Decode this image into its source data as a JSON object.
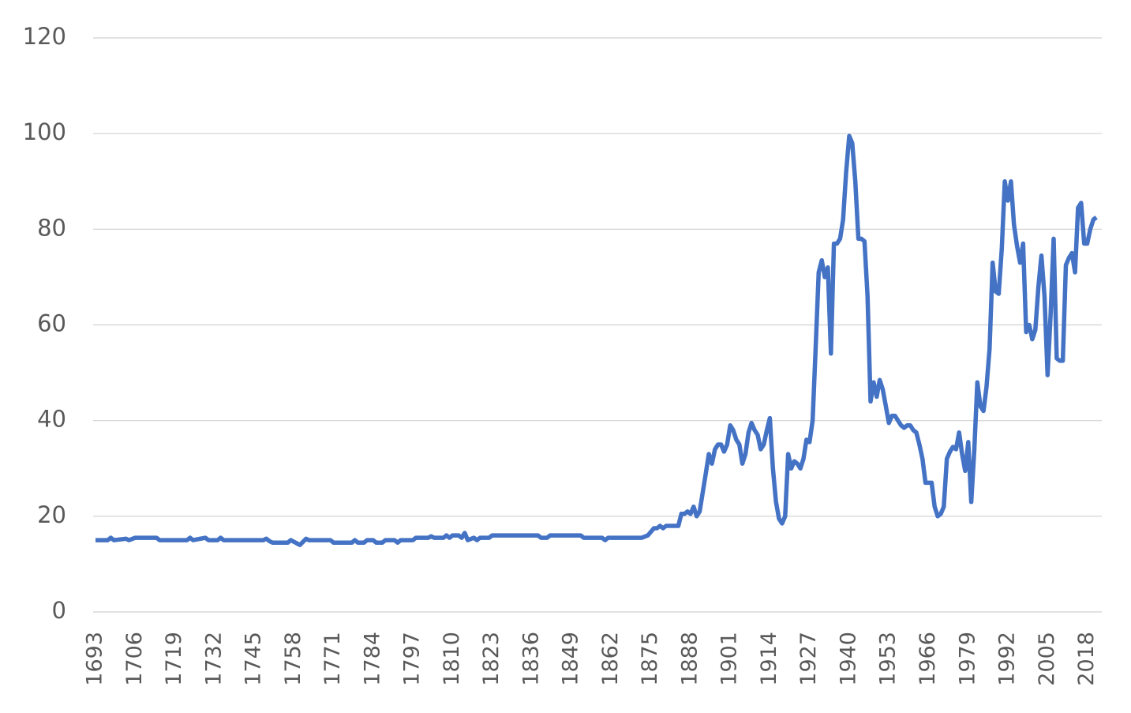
{
  "chart_data": {
    "type": "line",
    "x": [
      1693,
      1697,
      1698,
      1699,
      1703,
      1704,
      1706,
      1713,
      1714,
      1723,
      1724,
      1725,
      1729,
      1730,
      1733,
      1734,
      1735,
      1748,
      1749,
      1750,
      1751,
      1756,
      1757,
      1760,
      1762,
      1763,
      1770,
      1771,
      1777,
      1778,
      1779,
      1781,
      1782,
      1784,
      1785,
      1787,
      1788,
      1791,
      1792,
      1793,
      1797,
      1798,
      1802,
      1803,
      1804,
      1807,
      1808,
      1809,
      1810,
      1812,
      1813,
      1814,
      1815,
      1817,
      1818,
      1819,
      1822,
      1823,
      1838,
      1839,
      1841,
      1842,
      1852,
      1853,
      1859,
      1860,
      1861,
      1872,
      1874,
      1876,
      1877,
      1878,
      1879,
      1880,
      1884,
      1885,
      1886,
      1887,
      1888,
      1889,
      1890,
      1891,
      1892,
      1893,
      1894,
      1895,
      1896,
      1897,
      1898,
      1899,
      1900,
      1901,
      1902,
      1903,
      1904,
      1905,
      1906,
      1907,
      1908,
      1909,
      1910,
      1911,
      1912,
      1913,
      1914,
      1915,
      1916,
      1917,
      1918,
      1919,
      1920,
      1921,
      1922,
      1923,
      1924,
      1925,
      1926,
      1927,
      1928,
      1929,
      1930,
      1931,
      1932,
      1933,
      1934,
      1935,
      1936,
      1937,
      1938,
      1939,
      1940,
      1941,
      1942,
      1943,
      1944,
      1945,
      1946,
      1947,
      1948,
      1949,
      1950,
      1951,
      1952,
      1953,
      1954,
      1955,
      1956,
      1957,
      1958,
      1959,
      1960,
      1961,
      1962,
      1963,
      1964,
      1965,
      1966,
      1967,
      1968,
      1969,
      1970,
      1971,
      1972,
      1973,
      1974,
      1975,
      1976,
      1977,
      1978,
      1979,
      1980,
      1981,
      1982,
      1983,
      1984,
      1985,
      1986,
      1987,
      1988,
      1989,
      1990,
      1991,
      1992,
      1993,
      1994,
      1995,
      1996,
      1997,
      1998,
      1999,
      2000,
      2001,
      2002,
      2003,
      2004,
      2005,
      2006,
      2007,
      2008,
      2009,
      2010,
      2011,
      2012,
      2013,
      2014,
      2015,
      2016,
      2017,
      2018,
      2019,
      2020,
      2021
    ],
    "series": [
      {
        "color": "#4472c4",
        "values": [
          15,
          15,
          15.5,
          15,
          15.3,
          15,
          15.5,
          15.5,
          15,
          15,
          15.5,
          15,
          15.5,
          15,
          15,
          15.5,
          15,
          15,
          15.3,
          14.8,
          14.5,
          14.5,
          15,
          14,
          15.3,
          15,
          15,
          14.5,
          14.5,
          15,
          14.5,
          14.5,
          15,
          15,
          14.5,
          14.5,
          15,
          15,
          14.5,
          15,
          15,
          15.5,
          15.5,
          15.8,
          15.5,
          15.5,
          16,
          15.5,
          16,
          16,
          15.5,
          16.5,
          15,
          15.5,
          15,
          15.5,
          15.5,
          16,
          16,
          15.5,
          15.5,
          16,
          16,
          15.5,
          15.5,
          15,
          15.5,
          15.5,
          16,
          17.5,
          17.5,
          18,
          17.5,
          18,
          18,
          20.5,
          20.5,
          21,
          20.5,
          22,
          20,
          21,
          25,
          29,
          33,
          31,
          34,
          35,
          35,
          33.5,
          35,
          39,
          38,
          36,
          35,
          31,
          33,
          37.5,
          39.5,
          38,
          37,
          34,
          35,
          38,
          40.5,
          30,
          23,
          19.5,
          18.5,
          20,
          33,
          30,
          31.5,
          31,
          30,
          32,
          36,
          35.5,
          40,
          55,
          71,
          73.5,
          70,
          72,
          54,
          77,
          77,
          78,
          82,
          92,
          99.5,
          98,
          90,
          78,
          78,
          77.5,
          66,
          44,
          48,
          45,
          48.5,
          46.5,
          43,
          39.5,
          41,
          41,
          40,
          39,
          38.5,
          39,
          39,
          38,
          37.5,
          35,
          32,
          27,
          27,
          27,
          22,
          20,
          20.5,
          22,
          32,
          33.5,
          34.5,
          34,
          37.5,
          33,
          29.5,
          35.5,
          23,
          34,
          48,
          43,
          42,
          47,
          55,
          73,
          67,
          66.5,
          76,
          90,
          86,
          90,
          81,
          76.5,
          73,
          77,
          58.5,
          60,
          57,
          59,
          68,
          74.5,
          66,
          49.5,
          62,
          78,
          53,
          52.5,
          52.5,
          72.5,
          74,
          75,
          71,
          84.5,
          85.5,
          77,
          77,
          80,
          82,
          82.5
        ]
      }
    ],
    "xlim": [
      1693,
      2022
    ],
    "xticks": [
      1693,
      1706,
      1719,
      1732,
      1745,
      1758,
      1771,
      1784,
      1797,
      1810,
      1823,
      1836,
      1849,
      1862,
      1875,
      1888,
      1901,
      1914,
      1927,
      1940,
      1953,
      1966,
      1979,
      1992,
      2005,
      2018
    ],
    "ylim": [
      0,
      120
    ],
    "yticks": [
      0,
      20,
      40,
      60,
      80,
      100,
      120
    ],
    "grid": true
  }
}
